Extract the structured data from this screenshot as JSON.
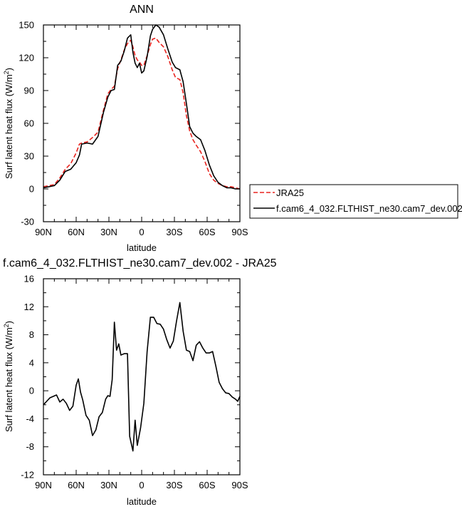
{
  "chart_data": [
    {
      "type": "line",
      "title": "ANN",
      "xlabel": "latitude",
      "ylabel": "Surf latent heat flux (W/m",
      "ylabel_sup": "2",
      "ylabel_tail": ")",
      "xlim": [
        -90,
        90
      ],
      "ylim": [
        -30,
        150
      ],
      "x_ticks": [
        -90,
        -60,
        -30,
        0,
        30,
        60,
        90
      ],
      "x_tick_labels": [
        "90N",
        "60N",
        "30N",
        "0",
        "30S",
        "60S",
        "90S"
      ],
      "y_ticks": [
        -30,
        0,
        30,
        60,
        90,
        120,
        150
      ],
      "y_tick_labels": [
        "-30",
        "0",
        "30",
        "60",
        "90",
        "120",
        "150"
      ],
      "grid": false,
      "legend": "right, outside plot",
      "x": [
        -90,
        -85,
        -80,
        -75,
        -70,
        -65,
        -60,
        -57,
        -55,
        -50,
        -45,
        -40,
        -35,
        -31,
        -28,
        -25,
        -22,
        -19,
        -16,
        -13,
        -10,
        -8,
        -6,
        -4,
        -2,
        0,
        2,
        5,
        8,
        10,
        13,
        16,
        20,
        24,
        28,
        31,
        35,
        38,
        41,
        44,
        47,
        50,
        54,
        58,
        62,
        66,
        70,
        74,
        78,
        82,
        86,
        90
      ],
      "series": [
        {
          "name": "JRA25",
          "color": "#e8231e",
          "dash": true,
          "values": [
            2,
            3,
            4,
            10,
            18,
            23,
            33,
            41,
            42,
            43,
            47,
            52,
            72,
            87,
            91,
            94,
            110,
            118,
            127,
            133,
            136,
            130,
            122,
            118,
            116,
            113,
            113,
            122,
            132,
            137,
            138,
            134,
            130,
            121,
            109,
            102,
            100,
            88,
            67,
            53,
            45,
            40,
            34,
            25,
            14,
            8,
            5,
            3,
            2,
            2,
            1,
            0
          ]
        },
        {
          "name": "f.cam6_4_032.FLTHIST_ne30.cam7_dev.002",
          "color": "#000000",
          "dash": false,
          "values": [
            1,
            2,
            3,
            8,
            16,
            18,
            24,
            31,
            41,
            42,
            41,
            48,
            70,
            84,
            90,
            91,
            113,
            117,
            126,
            138,
            141,
            125,
            115,
            111,
            115,
            106,
            108,
            121,
            140,
            146,
            150,
            148,
            141,
            128,
            116,
            111,
            109,
            98,
            78,
            57,
            51,
            48,
            45,
            35,
            22,
            12,
            6,
            3,
            1,
            1,
            0,
            0
          ]
        }
      ]
    },
    {
      "type": "line",
      "title": "f.cam6_4_032.FLTHIST_ne30.cam7_dev.002 - JRA25",
      "xlabel": "latitude",
      "ylabel": "Surf latent heat flux (W/m",
      "ylabel_sup": "2",
      "ylabel_tail": ")",
      "xlim": [
        -90,
        90
      ],
      "ylim": [
        -12,
        16
      ],
      "x_ticks": [
        -90,
        -60,
        -30,
        0,
        30,
        60,
        90
      ],
      "x_tick_labels": [
        "90N",
        "60N",
        "30N",
        "0",
        "30S",
        "60S",
        "90S"
      ],
      "y_ticks": [
        -12,
        -8,
        -4,
        0,
        4,
        8,
        12,
        16
      ],
      "y_tick_labels": [
        "-12",
        "-8",
        "-4",
        "0",
        "4",
        "8",
        "12",
        "16"
      ],
      "grid": false,
      "x": [
        -90,
        -87,
        -84,
        -81,
        -78,
        -75,
        -72,
        -69,
        -66,
        -63,
        -60,
        -58,
        -56,
        -54,
        -51,
        -48,
        -45,
        -42,
        -39,
        -36,
        -33,
        -31,
        -29,
        -27,
        -25,
        -23,
        -21,
        -19,
        -16,
        -13,
        -11,
        -8,
        -6,
        -4,
        -1,
        2,
        5,
        8,
        11,
        14,
        17,
        20,
        23,
        26,
        29,
        32,
        35,
        38,
        41,
        44,
        47,
        50,
        53,
        56,
        59,
        62,
        65,
        68,
        71,
        74,
        77,
        80,
        83,
        86,
        88,
        90
      ],
      "series": [
        {
          "name": "",
          "color": "#000000",
          "dash": false,
          "values": [
            -2,
            -1.5,
            -1,
            -0.8,
            -0.6,
            -1.6,
            -1.2,
            -1.8,
            -2.8,
            -2.2,
            0.8,
            1.7,
            -0.2,
            -1.3,
            -3.5,
            -4.2,
            -6.4,
            -5.6,
            -3.7,
            -3.1,
            -1.2,
            -0.7,
            -0.8,
            1.6,
            9.8,
            5.8,
            6.7,
            5.1,
            5.3,
            5.3,
            -6.5,
            -8.6,
            -4.2,
            -7.8,
            -5.3,
            -1.8,
            5.6,
            10.5,
            10.5,
            9.6,
            9.5,
            8.8,
            7.3,
            6.1,
            7.1,
            10,
            12.6,
            8.5,
            5.8,
            5.6,
            4.3,
            6.5,
            7,
            6.1,
            5.4,
            5.4,
            5.6,
            3.5,
            1.2,
            0.3,
            -0.3,
            -0.4,
            -0.9,
            -1.2,
            -1.5,
            -0.8
          ]
        }
      ]
    }
  ]
}
